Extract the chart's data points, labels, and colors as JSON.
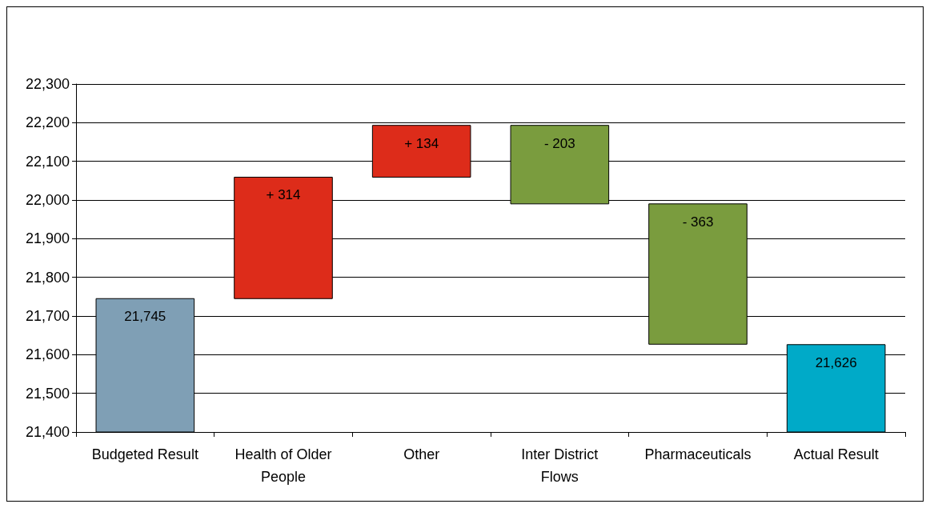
{
  "chart_data": {
    "type": "bar",
    "categories": [
      "Budgeted Result",
      "Health of Older People",
      "Other",
      "Inter District Flows",
      "Pharmaceuticals",
      "Actual Result"
    ],
    "values": [
      21745,
      314,
      134,
      -203,
      -363,
      21626
    ],
    "base": [
      0,
      21745,
      22059,
      22193,
      21990,
      0
    ],
    "colors": [
      "#7f9fb5",
      "#dd2c1a",
      "#dd2c1a",
      "#7a9c3e",
      "#7a9c3e",
      "#00aac8"
    ],
    "value_labels": [
      "21,745",
      "+ 314",
      "+ 134",
      "- 203",
      "- 363",
      "21,626"
    ],
    "ylim": [
      21400,
      22300
    ],
    "yticks": [
      {
        "value": 21400,
        "label": "21,400"
      },
      {
        "value": 21500,
        "label": "21,500"
      },
      {
        "value": 21600,
        "label": "21,600"
      },
      {
        "value": 21700,
        "label": "21,700"
      },
      {
        "value": 21800,
        "label": "21,800"
      },
      {
        "value": 21900,
        "label": "21,900"
      },
      {
        "value": 22000,
        "label": "22,000"
      },
      {
        "value": 22100,
        "label": "22,100"
      },
      {
        "value": 22200,
        "label": "22,200"
      },
      {
        "value": 22300,
        "label": "22,300"
      }
    ],
    "grid": "y"
  }
}
